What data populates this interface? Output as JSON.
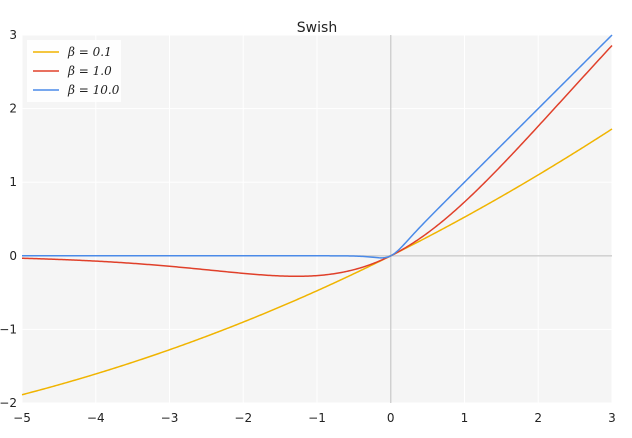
{
  "chart_data": {
    "type": "line",
    "title": "Swish",
    "xlabel": "",
    "ylabel": "",
    "xlim": [
      -5,
      3
    ],
    "ylim": [
      -2,
      3
    ],
    "x_ticks": [
      "−5",
      "−4",
      "−3",
      "−2",
      "−1",
      "0",
      "1",
      "2",
      "3"
    ],
    "y_ticks": [
      "−2",
      "−1",
      "0",
      "1",
      "2",
      "3"
    ],
    "grid": true,
    "legend_position": "top-left",
    "function": "y = x * sigmoid(beta * x)",
    "x_range": [
      -5,
      3
    ],
    "series": [
      {
        "name": "β = 0.1",
        "beta": 0.1,
        "color": "#f0b400"
      },
      {
        "name": "β = 1.0",
        "beta": 1.0,
        "color": "#e0402a"
      },
      {
        "name": "β = 10.0",
        "beta": 10.0,
        "color": "#4a8ae8"
      }
    ]
  }
}
